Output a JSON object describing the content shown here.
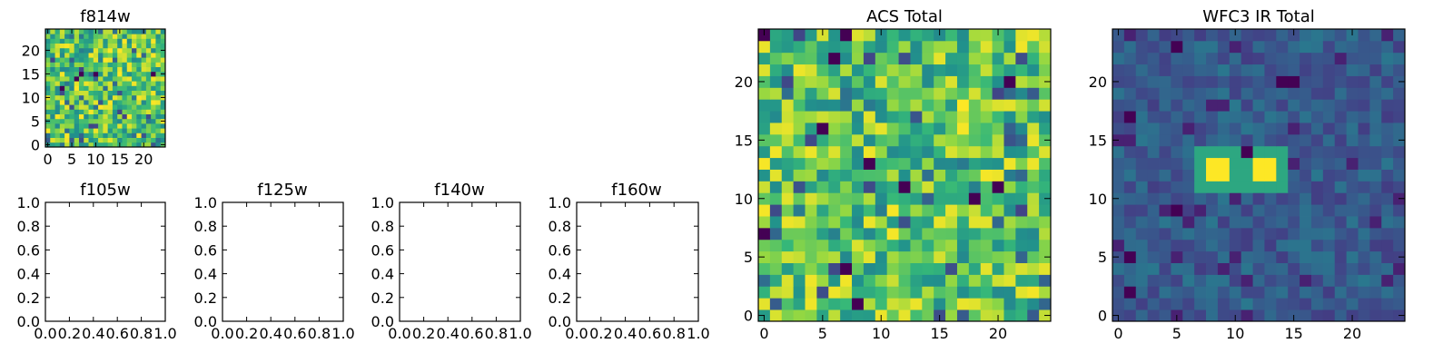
{
  "chart_data": [
    {
      "type": "heatmap",
      "title": "f814w",
      "grid_size": 25,
      "xticks": [
        0,
        5,
        10,
        15,
        20
      ],
      "yticks": [
        0,
        5,
        10,
        15,
        20
      ],
      "xlim": [
        -0.5,
        24.5
      ],
      "ylim": [
        -0.5,
        24.5
      ],
      "colormap": "viridis",
      "pattern": "noise-high",
      "seed": 11
    },
    {
      "type": "empty",
      "title": "f105w",
      "xticks": [
        "0.0",
        "0.2",
        "0.4",
        "0.6",
        "0.8",
        "1.0"
      ],
      "yticks": [
        "0.0",
        "0.2",
        "0.4",
        "0.6",
        "0.8",
        "1.0"
      ],
      "xlim": [
        0,
        1
      ],
      "ylim": [
        0,
        1
      ]
    },
    {
      "type": "empty",
      "title": "f125w",
      "xticks": [
        "0.0",
        "0.2",
        "0.4",
        "0.6",
        "0.8",
        "1.0"
      ],
      "yticks": [
        "0.0",
        "0.2",
        "0.4",
        "0.6",
        "0.8",
        "1.0"
      ],
      "xlim": [
        0,
        1
      ],
      "ylim": [
        0,
        1
      ]
    },
    {
      "type": "empty",
      "title": "f140w",
      "xticks": [
        "0.0",
        "0.2",
        "0.4",
        "0.6",
        "0.8",
        "1.0"
      ],
      "yticks": [
        "0.0",
        "0.2",
        "0.4",
        "0.6",
        "0.8",
        "1.0"
      ],
      "xlim": [
        0,
        1
      ],
      "ylim": [
        0,
        1
      ]
    },
    {
      "type": "empty",
      "title": "f160w",
      "xticks": [
        "0.0",
        "0.2",
        "0.4",
        "0.6",
        "0.8",
        "1.0"
      ],
      "yticks": [
        "0.0",
        "0.2",
        "0.4",
        "0.6",
        "0.8",
        "1.0"
      ],
      "xlim": [
        0,
        1
      ],
      "ylim": [
        0,
        1
      ]
    },
    {
      "type": "heatmap",
      "title": "ACS Total",
      "grid_size": 25,
      "xticks": [
        0,
        5,
        10,
        15,
        20
      ],
      "yticks": [
        0,
        5,
        10,
        15,
        20
      ],
      "xlim": [
        -0.5,
        24.5
      ],
      "ylim": [
        -0.5,
        24.5
      ],
      "colormap": "viridis",
      "pattern": "noise-high",
      "seed": 29
    },
    {
      "type": "heatmap",
      "title": "WFC3 IR Total",
      "grid_size": 25,
      "xticks": [
        0,
        5,
        10,
        15,
        20
      ],
      "yticks": [
        0,
        5,
        10,
        15,
        20
      ],
      "xlim": [
        -0.5,
        24.5
      ],
      "ylim": [
        -0.5,
        24.5
      ],
      "colormap": "viridis",
      "pattern": "noise-low-with-sources",
      "seed": 53,
      "bright_sources": [
        {
          "x": 8,
          "y": 12,
          "w": 2,
          "h": 2
        },
        {
          "x": 12,
          "y": 12,
          "w": 2,
          "h": 2
        }
      ],
      "dark_pixels": [
        {
          "x": 14,
          "y": 20,
          "w": 2,
          "h": 1
        },
        {
          "x": 5,
          "y": 23,
          "w": 1,
          "h": 1
        },
        {
          "x": 1,
          "y": 17,
          "w": 1,
          "h": 1
        },
        {
          "x": 5,
          "y": 9,
          "w": 1,
          "h": 1
        },
        {
          "x": 1,
          "y": 5,
          "w": 1,
          "h": 1
        },
        {
          "x": 1,
          "y": 2,
          "w": 1,
          "h": 1
        },
        {
          "x": 11,
          "y": 14,
          "w": 1,
          "h": 1
        }
      ]
    }
  ]
}
